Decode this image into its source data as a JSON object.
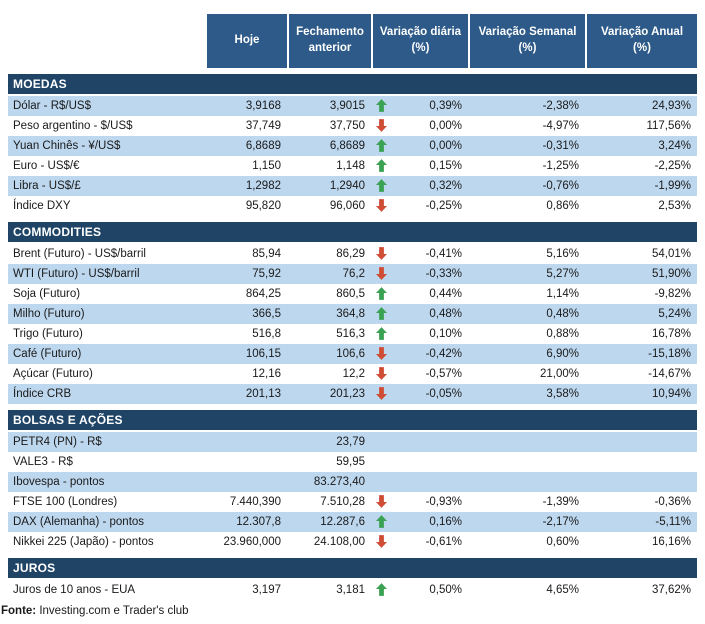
{
  "chart_data": {
    "type": "table",
    "columns": [
      "",
      "Hoje",
      "Fechamento anterior",
      "Variação diária (%)",
      "Variação Semanal (%)",
      "Variação Anual (%)"
    ],
    "sections": [
      {
        "title": "MOEDAS",
        "rows": [
          {
            "label": "Dólar - R$/US$",
            "hoje": "3,9168",
            "fechamento": "3,9015",
            "arrow": "up",
            "diaria": "0,39%",
            "semanal": "-2,38%",
            "anual": "24,93%",
            "shaded": true
          },
          {
            "label": "Peso argentino - $/US$",
            "hoje": "37,749",
            "fechamento": "37,750",
            "arrow": "down",
            "diaria": "0,00%",
            "semanal": "-4,97%",
            "anual": "117,56%",
            "shaded": false
          },
          {
            "label": "Yuan Chinês - ¥/US$",
            "hoje": "6,8689",
            "fechamento": "6,8689",
            "arrow": "up",
            "diaria": "0,00%",
            "semanal": "-0,31%",
            "anual": "3,24%",
            "shaded": true
          },
          {
            "label": "Euro - US$/€",
            "hoje": "1,150",
            "fechamento": "1,148",
            "arrow": "up",
            "diaria": "0,15%",
            "semanal": "-1,25%",
            "anual": "-2,25%",
            "shaded": false
          },
          {
            "label": "Libra - US$/£",
            "hoje": "1,2982",
            "fechamento": "1,2940",
            "arrow": "up",
            "diaria": "0,32%",
            "semanal": "-0,76%",
            "anual": "-1,99%",
            "shaded": true
          },
          {
            "label": "Índice DXY",
            "hoje": "95,820",
            "fechamento": "96,060",
            "arrow": "down",
            "diaria": "-0,25%",
            "semanal": "0,86%",
            "anual": "2,53%",
            "shaded": false
          }
        ]
      },
      {
        "title": "COMMODITIES",
        "rows": [
          {
            "label": "Brent (Futuro) - US$/barril",
            "hoje": "85,94",
            "fechamento": "86,29",
            "arrow": "down",
            "diaria": "-0,41%",
            "semanal": "5,16%",
            "anual": "54,01%",
            "shaded": false
          },
          {
            "label": "WTI (Futuro) - US$/barril",
            "hoje": "75,92",
            "fechamento": "76,2",
            "arrow": "down",
            "diaria": "-0,33%",
            "semanal": "5,27%",
            "anual": "51,90%",
            "shaded": true
          },
          {
            "label": "Soja (Futuro)",
            "hoje": "864,25",
            "fechamento": "860,5",
            "arrow": "up",
            "diaria": "0,44%",
            "semanal": "1,14%",
            "anual": "-9,82%",
            "shaded": false
          },
          {
            "label": "Milho (Futuro)",
            "hoje": "366,5",
            "fechamento": "364,8",
            "arrow": "up",
            "diaria": "0,48%",
            "semanal": "0,48%",
            "anual": "5,24%",
            "shaded": true
          },
          {
            "label": "Trigo (Futuro)",
            "hoje": "516,8",
            "fechamento": "516,3",
            "arrow": "up",
            "diaria": "0,10%",
            "semanal": "0,88%",
            "anual": "16,78%",
            "shaded": false
          },
          {
            "label": "Café (Futuro)",
            "hoje": "106,15",
            "fechamento": "106,6",
            "arrow": "down",
            "diaria": "-0,42%",
            "semanal": "6,90%",
            "anual": "-15,18%",
            "shaded": true
          },
          {
            "label": "Açúcar (Futuro)",
            "hoje": "12,16",
            "fechamento": "12,2",
            "arrow": "down",
            "diaria": "-0,57%",
            "semanal": "21,00%",
            "anual": "-14,67%",
            "shaded": false
          },
          {
            "label": "Índice CRB",
            "hoje": "201,13",
            "fechamento": "201,23",
            "arrow": "down",
            "diaria": "-0,05%",
            "semanal": "3,58%",
            "anual": "10,94%",
            "shaded": true
          }
        ]
      },
      {
        "title": "BOLSAS E AÇÕES",
        "rows": [
          {
            "label": "PETR4 (PN) - R$",
            "hoje": "",
            "fechamento": "23,79",
            "arrow": "",
            "diaria": "",
            "semanal": "",
            "anual": "",
            "shaded": true
          },
          {
            "label": "VALE3 - R$",
            "hoje": "",
            "fechamento": "59,95",
            "arrow": "",
            "diaria": "",
            "semanal": "",
            "anual": "",
            "shaded": false
          },
          {
            "label": "Ibovespa - pontos",
            "hoje": "",
            "fechamento": "83.273,40",
            "arrow": "",
            "diaria": "",
            "semanal": "",
            "anual": "",
            "shaded": true
          },
          {
            "label": "FTSE 100 (Londres)",
            "hoje": "7.440,390",
            "fechamento": "7.510,28",
            "arrow": "down",
            "diaria": "-0,93%",
            "semanal": "-1,39%",
            "anual": "-0,36%",
            "shaded": false
          },
          {
            "label": "DAX (Alemanha) - pontos",
            "hoje": "12.307,8",
            "fechamento": "12.287,6",
            "arrow": "up",
            "diaria": "0,16%",
            "semanal": "-2,17%",
            "anual": "-5,11%",
            "shaded": true
          },
          {
            "label": "Nikkei 225 (Japão) - pontos",
            "hoje": "23.960,000",
            "fechamento": "24.108,00",
            "arrow": "down",
            "diaria": "-0,61%",
            "semanal": "0,60%",
            "anual": "16,16%",
            "shaded": false
          }
        ]
      },
      {
        "title": "JUROS",
        "rows": [
          {
            "label": "Juros de 10 anos - EUA",
            "hoje": "3,197",
            "fechamento": "3,181",
            "arrow": "up",
            "diaria": "0,50%",
            "semanal": "4,65%",
            "anual": "37,62%",
            "shaded": false
          }
        ]
      }
    ]
  },
  "footer": {
    "label": "Fonte:",
    "text": " Investing.com e Trader's club"
  },
  "colors": {
    "header_bg": "#2D5A88",
    "section_bg": "#1F4466",
    "stripe": "#BDD7EE",
    "up": "#3BA254",
    "down": "#CF4C35"
  },
  "icons": {
    "up": "up-arrow-icon",
    "down": "down-arrow-icon"
  }
}
